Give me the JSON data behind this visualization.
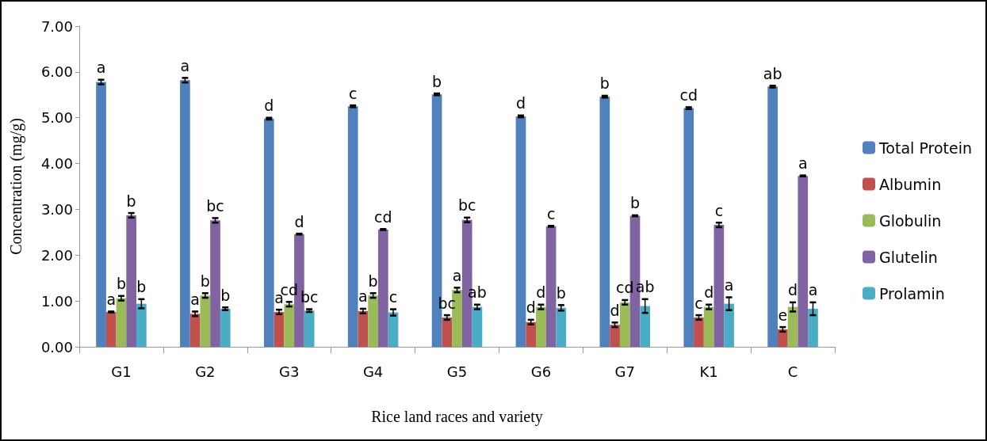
{
  "chart_data": {
    "type": "bar",
    "xlabel": "Rice land races and variety",
    "ylabel": "Concentration (mg/g)",
    "categories": [
      "G1",
      "G2",
      "G3",
      "G4",
      "G5",
      "G6",
      "G7",
      "K1",
      "C"
    ],
    "series": [
      {
        "name": "Total Protein",
        "color": "#4f81bd",
        "values": [
          5.78,
          5.82,
          4.98,
          5.25,
          5.51,
          5.03,
          5.46,
          5.21,
          5.68
        ],
        "errors": [
          0.05,
          0.05,
          0.02,
          0.02,
          0.02,
          0.02,
          0.02,
          0.02,
          0.02
        ],
        "value_labels": [
          "a",
          "a",
          "d",
          "c",
          "b",
          "d",
          "b",
          "cd",
          "ab"
        ]
      },
      {
        "name": "Albumin",
        "color": "#c0504d",
        "values": [
          0.76,
          0.72,
          0.76,
          0.78,
          0.64,
          0.54,
          0.48,
          0.64,
          0.38
        ],
        "errors": [
          0.01,
          0.05,
          0.05,
          0.05,
          0.05,
          0.05,
          0.05,
          0.05,
          0.05
        ],
        "value_labels": [
          "a",
          "a",
          "a",
          "a",
          "bc",
          "d",
          "d",
          "c",
          "e"
        ]
      },
      {
        "name": "Globulin",
        "color": "#9bbb59",
        "values": [
          1.06,
          1.12,
          0.93,
          1.12,
          1.24,
          0.87,
          0.97,
          0.87,
          0.87
        ],
        "errors": [
          0.05,
          0.05,
          0.05,
          0.05,
          0.05,
          0.05,
          0.05,
          0.05,
          0.1
        ],
        "value_labels": [
          "b",
          "b",
          "cd",
          "b",
          "a",
          "d",
          "cd",
          "d",
          "d"
        ]
      },
      {
        "name": "Glutelin",
        "color": "#8064a2",
        "values": [
          2.87,
          2.76,
          2.46,
          2.56,
          2.77,
          2.63,
          2.86,
          2.66,
          3.73
        ],
        "errors": [
          0.05,
          0.05,
          0.01,
          0.01,
          0.05,
          0.01,
          0.01,
          0.05,
          0.01
        ],
        "value_labels": [
          "b",
          "bc",
          "d",
          "cd",
          "bc",
          "c",
          "b",
          "c",
          "a"
        ]
      },
      {
        "name": "Prolamin",
        "color": "#4bacc6",
        "values": [
          0.94,
          0.83,
          0.79,
          0.75,
          0.87,
          0.85,
          0.89,
          0.94,
          0.83
        ],
        "errors": [
          0.1,
          0.03,
          0.03,
          0.07,
          0.05,
          0.06,
          0.15,
          0.14,
          0.14
        ],
        "value_labels": [
          "b",
          "b",
          "bc",
          "c",
          "ab",
          "b",
          "ab",
          "a",
          "a"
        ]
      }
    ],
    "ylim": [
      0,
      7
    ],
    "yticks": [
      {
        "value": 0,
        "label": "0.00"
      },
      {
        "value": 1,
        "label": "1.00"
      },
      {
        "value": 2,
        "label": "2.00"
      },
      {
        "value": 3,
        "label": "3.00"
      },
      {
        "value": 4,
        "label": "4.00"
      },
      {
        "value": 5,
        "label": "5.00"
      },
      {
        "value": 6,
        "label": "6.00"
      },
      {
        "value": 7,
        "label": "7.00"
      }
    ],
    "grid": false,
    "legend": "right"
  }
}
